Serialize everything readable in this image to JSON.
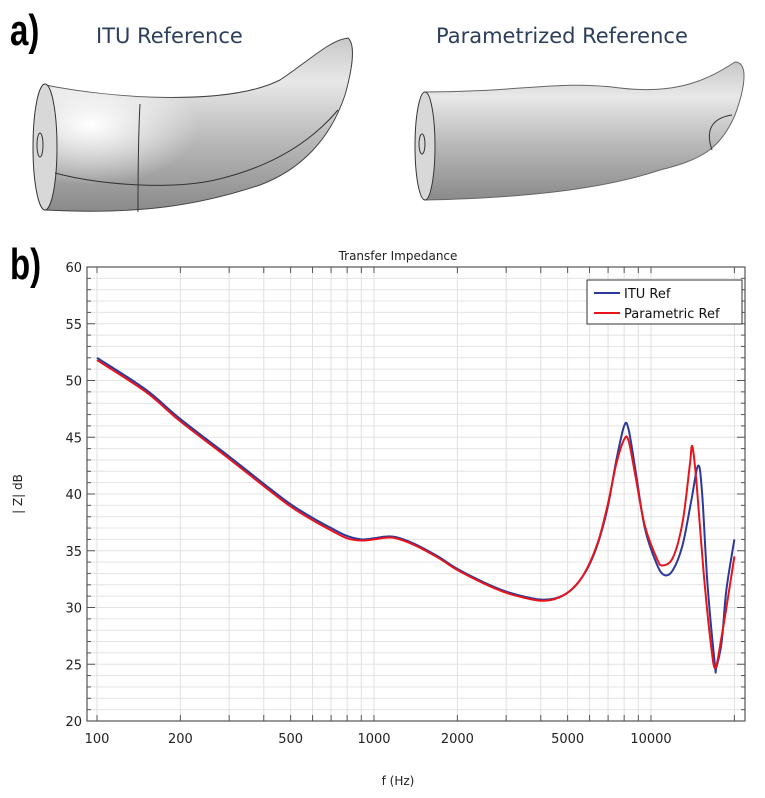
{
  "panels": {
    "a_label": "a)",
    "b_label": "b)"
  },
  "models": [
    {
      "title": "ITU Reference"
    },
    {
      "title": "Parametrized Reference"
    }
  ],
  "chart_data": {
    "type": "line",
    "title": "Transfer Impedance",
    "xlabel": "f (Hz)",
    "ylabel": "| Z| dB",
    "xscale": "log",
    "xlim": [
      100,
      22000
    ],
    "ylim": [
      20,
      60
    ],
    "xticks": [
      100,
      200,
      500,
      1000,
      2000,
      5000,
      10000
    ],
    "xtick_labels": [
      "100",
      "200",
      "500",
      "1000",
      "2000",
      "5000",
      "10000"
    ],
    "yticks": [
      20,
      25,
      30,
      35,
      40,
      45,
      50,
      55,
      60
    ],
    "ytick_labels": [
      "20",
      "25",
      "30",
      "35",
      "40",
      "45",
      "50",
      "55",
      "60"
    ],
    "grid": true,
    "legend_position": "top-right",
    "series": [
      {
        "name": "ITU Ref",
        "color": "#2b3a9a",
        "x": [
          100,
          150,
          200,
          300,
          400,
          500,
          600,
          700,
          800,
          900,
          1000,
          1100,
          1200,
          1400,
          1700,
          2000,
          2500,
          3000,
          3500,
          4000,
          4500,
          5000,
          5500,
          6000,
          6500,
          7000,
          7500,
          8000,
          8300,
          8800,
          9500,
          10500,
          11200,
          12000,
          13000,
          14000,
          14800,
          15300,
          16000,
          17000,
          17200,
          18000,
          18700,
          20000
        ],
        "y": [
          52.0,
          49.2,
          46.6,
          43.3,
          40.9,
          39.1,
          37.9,
          37.0,
          36.3,
          36.0,
          36.1,
          36.25,
          36.2,
          35.6,
          34.5,
          33.4,
          32.2,
          31.4,
          30.95,
          30.7,
          30.8,
          31.3,
          32.3,
          33.8,
          36.0,
          39.0,
          43.0,
          46.0,
          45.7,
          42.0,
          37.0,
          33.8,
          32.85,
          33.3,
          35.5,
          39.5,
          42.5,
          40.0,
          32.0,
          25.0,
          24.7,
          27.0,
          31.5,
          36.0
        ]
      },
      {
        "name": "Parametric Ref",
        "color": "#e8141c",
        "x": [
          100,
          150,
          200,
          300,
          400,
          500,
          600,
          700,
          800,
          900,
          1000,
          1100,
          1200,
          1400,
          1700,
          2000,
          2500,
          3000,
          3500,
          4000,
          4500,
          5000,
          5500,
          6000,
          6500,
          7000,
          7500,
          8000,
          8300,
          8800,
          9500,
          10500,
          11000,
          12000,
          13000,
          13800,
          14100,
          14600,
          15500,
          16500,
          17100,
          18000,
          19000,
          20000
        ],
        "y": [
          51.8,
          49.0,
          46.4,
          43.1,
          40.7,
          38.9,
          37.7,
          36.8,
          36.1,
          35.9,
          36.0,
          36.15,
          36.1,
          35.5,
          34.4,
          33.3,
          32.1,
          31.3,
          30.85,
          30.6,
          30.75,
          31.3,
          32.3,
          33.9,
          36.1,
          39.2,
          42.7,
          44.8,
          44.7,
          41.5,
          37.2,
          34.3,
          33.7,
          34.4,
          37.5,
          42.5,
          44.2,
          41.0,
          33.0,
          26.5,
          24.7,
          27.5,
          31.0,
          34.5
        ]
      }
    ]
  }
}
